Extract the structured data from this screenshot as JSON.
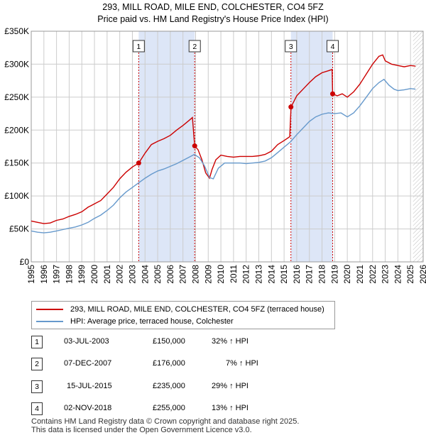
{
  "title_line1": "293, MILL ROAD, MILE END, COLCHESTER, CO4 5FZ",
  "title_line2": "Price paid vs. HM Land Registry's House Price Index (HPI)",
  "colors": {
    "price": "#cc0000",
    "hpi": "#6699cc",
    "shade": "#dde6f7",
    "grid": "#cccccc"
  },
  "chart_data": {
    "type": "line",
    "title": "Price paid vs. HM Land Registry's House Price Index (HPI)",
    "xlabel": "",
    "ylabel": "",
    "xlim": [
      1995.0,
      2026.0
    ],
    "ylim": [
      0,
      350000
    ],
    "yticks": [
      0,
      50000,
      100000,
      150000,
      200000,
      250000,
      300000,
      350000
    ],
    "ytick_labels": [
      "£0",
      "£50K",
      "£100K",
      "£150K",
      "£200K",
      "£250K",
      "£300K",
      "£350K"
    ],
    "xticks": [
      "1995",
      "1996",
      "1997",
      "1998",
      "1999",
      "2000",
      "2001",
      "2002",
      "2003",
      "2004",
      "2005",
      "2006",
      "2007",
      "2008",
      "2009",
      "2010",
      "2011",
      "2012",
      "2013",
      "2014",
      "2015",
      "2016",
      "2017",
      "2018",
      "2019",
      "2020",
      "2021",
      "2022",
      "2023",
      "2024",
      "2025",
      "2026"
    ],
    "series": [
      {
        "name": "293, MILL ROAD, MILE END, COLCHESTER, CO4 5FZ (terraced house)",
        "color": "#cc0000",
        "x": [
          1995.0,
          1995.5,
          1996.0,
          1996.5,
          1997.0,
          1997.5,
          1998.0,
          1998.5,
          1999.0,
          1999.5,
          2000.0,
          2000.5,
          2001.0,
          2001.5,
          2002.0,
          2002.5,
          2003.0,
          2003.5,
          2004.0,
          2004.5,
          2005.0,
          2005.5,
          2006.0,
          2006.5,
          2007.0,
          2007.5,
          2007.75,
          2007.93,
          2008.2,
          2008.5,
          2008.8,
          2009.1,
          2009.3,
          2009.6,
          2010.0,
          2010.5,
          2011.0,
          2011.5,
          2012.0,
          2012.5,
          2013.0,
          2013.5,
          2014.0,
          2014.5,
          2015.0,
          2015.45,
          2015.55,
          2016.0,
          2016.5,
          2017.0,
          2017.5,
          2018.0,
          2018.5,
          2018.8,
          2018.84,
          2019.2,
          2019.6,
          2020.0,
          2020.5,
          2021.0,
          2021.5,
          2022.0,
          2022.5,
          2022.8,
          2023.0,
          2023.5,
          2024.0,
          2024.5,
          2025.0,
          2025.4
        ],
        "values": [
          62000,
          60000,
          58000,
          59000,
          63000,
          65000,
          69000,
          72000,
          76000,
          83000,
          88000,
          93000,
          103000,
          113000,
          126000,
          136000,
          144000,
          150000,
          165000,
          178000,
          183000,
          187000,
          192000,
          200000,
          207000,
          215000,
          219000,
          176000,
          170000,
          155000,
          135000,
          127000,
          140000,
          155000,
          162000,
          160000,
          159000,
          160000,
          160000,
          160000,
          161000,
          163000,
          168000,
          178000,
          184000,
          190000,
          235000,
          252000,
          262000,
          272000,
          281000,
          287000,
          290000,
          292000,
          255000,
          252000,
          255000,
          250000,
          258000,
          270000,
          285000,
          300000,
          312000,
          314000,
          305000,
          300000,
          298000,
          296000,
          298000,
          297000
        ]
      },
      {
        "name": "HPI: Average price, terraced house, Colchester",
        "color": "#6699cc",
        "x": [
          1995.0,
          1995.5,
          1996.0,
          1996.5,
          1997.0,
          1997.5,
          1998.0,
          1998.5,
          1999.0,
          1999.5,
          2000.0,
          2000.5,
          2001.0,
          2001.5,
          2002.0,
          2002.5,
          2003.0,
          2003.5,
          2004.0,
          2004.5,
          2005.0,
          2005.5,
          2006.0,
          2006.5,
          2007.0,
          2007.5,
          2007.9,
          2008.3,
          2008.7,
          2009.1,
          2009.4,
          2009.8,
          2010.3,
          2011.0,
          2011.5,
          2012.0,
          2012.5,
          2013.0,
          2013.5,
          2014.0,
          2014.5,
          2015.0,
          2015.5,
          2016.0,
          2016.5,
          2017.0,
          2017.5,
          2018.0,
          2018.5,
          2019.0,
          2019.5,
          2020.0,
          2020.5,
          2021.0,
          2021.5,
          2022.0,
          2022.5,
          2022.9,
          2023.3,
          2023.7,
          2024.0,
          2024.5,
          2025.0,
          2025.4
        ],
        "values": [
          47000,
          45000,
          44000,
          45000,
          47000,
          49000,
          51000,
          53000,
          56000,
          60000,
          66000,
          71000,
          78000,
          86000,
          97000,
          106000,
          113000,
          120000,
          127000,
          133000,
          138000,
          141000,
          145000,
          149000,
          154000,
          159000,
          163000,
          158000,
          146000,
          128000,
          126000,
          142000,
          150000,
          150000,
          150000,
          149000,
          150000,
          151000,
          153000,
          158000,
          166000,
          174000,
          182000,
          193000,
          203000,
          213000,
          220000,
          224000,
          226000,
          225000,
          226000,
          220000,
          226000,
          237000,
          250000,
          263000,
          272000,
          277000,
          268000,
          262000,
          260000,
          261000,
          263000,
          262000
        ]
      }
    ],
    "sales": [
      {
        "id": "1",
        "x": 2003.5,
        "value": 150000
      },
      {
        "id": "2",
        "x": 2007.93,
        "value": 176000
      },
      {
        "id": "3",
        "x": 2015.54,
        "value": 235000
      },
      {
        "id": "4",
        "x": 2018.84,
        "value": 255000
      }
    ],
    "shaded_ranges": [
      [
        2003.5,
        2007.93
      ],
      [
        2015.54,
        2018.84
      ]
    ],
    "hatched_from": 2025.2
  },
  "legend": {
    "price_label": "293, MILL ROAD, MILE END, COLCHESTER, CO4 5FZ (terraced house)",
    "hpi_label": "HPI: Average price, terraced house, Colchester"
  },
  "sales_table": [
    {
      "num": "1",
      "date": "03-JUL-2003",
      "price": "£150,000",
      "hpi": "32% ↑ HPI"
    },
    {
      "num": "2",
      "date": "07-DEC-2007",
      "price": "£176,000",
      "hpi": "7% ↑ HPI"
    },
    {
      "num": "3",
      "date": "15-JUL-2015",
      "price": "£235,000",
      "hpi": "29% ↑ HPI"
    },
    {
      "num": "4",
      "date": "02-NOV-2018",
      "price": "£255,000",
      "hpi": "13% ↑ HPI"
    }
  ],
  "footer": {
    "line1": "Contains HM Land Registry data © Crown copyright and database right 2025.",
    "line2": "This data is licensed under the Open Government Licence v3.0."
  }
}
